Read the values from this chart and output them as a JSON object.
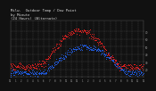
{
  "title": "Milw.  Outdoor Temp / Dew Point\nby Minute\n(24 Hours) (Alternate)",
  "title_fontsize": 3.5,
  "bg_color": "#111111",
  "plot_bg_color": "#111111",
  "grid_color": "#555555",
  "temp_color": "#ff2222",
  "dew_color": "#2266ff",
  "ylim": [
    10,
    85
  ],
  "xlim": [
    0,
    1440
  ],
  "yticks": [
    20,
    30,
    40,
    50,
    60,
    70
  ],
  "ytick_labels": [
    "20",
    "30",
    "40",
    "50",
    "60",
    "70"
  ],
  "hour_labels": [
    "12",
    "1",
    "2",
    "3",
    "4",
    "5",
    "6",
    "7",
    "8",
    "9",
    "10",
    "11",
    "12",
    "1",
    "2",
    "3",
    "4",
    "5",
    "6",
    "7",
    "8",
    "9",
    "10",
    "11",
    "12"
  ],
  "temp_base": 30,
  "temp_peak": 72,
  "temp_trough": 24,
  "dew_base": 22,
  "dew_peak": 50,
  "dew_trough": 16
}
